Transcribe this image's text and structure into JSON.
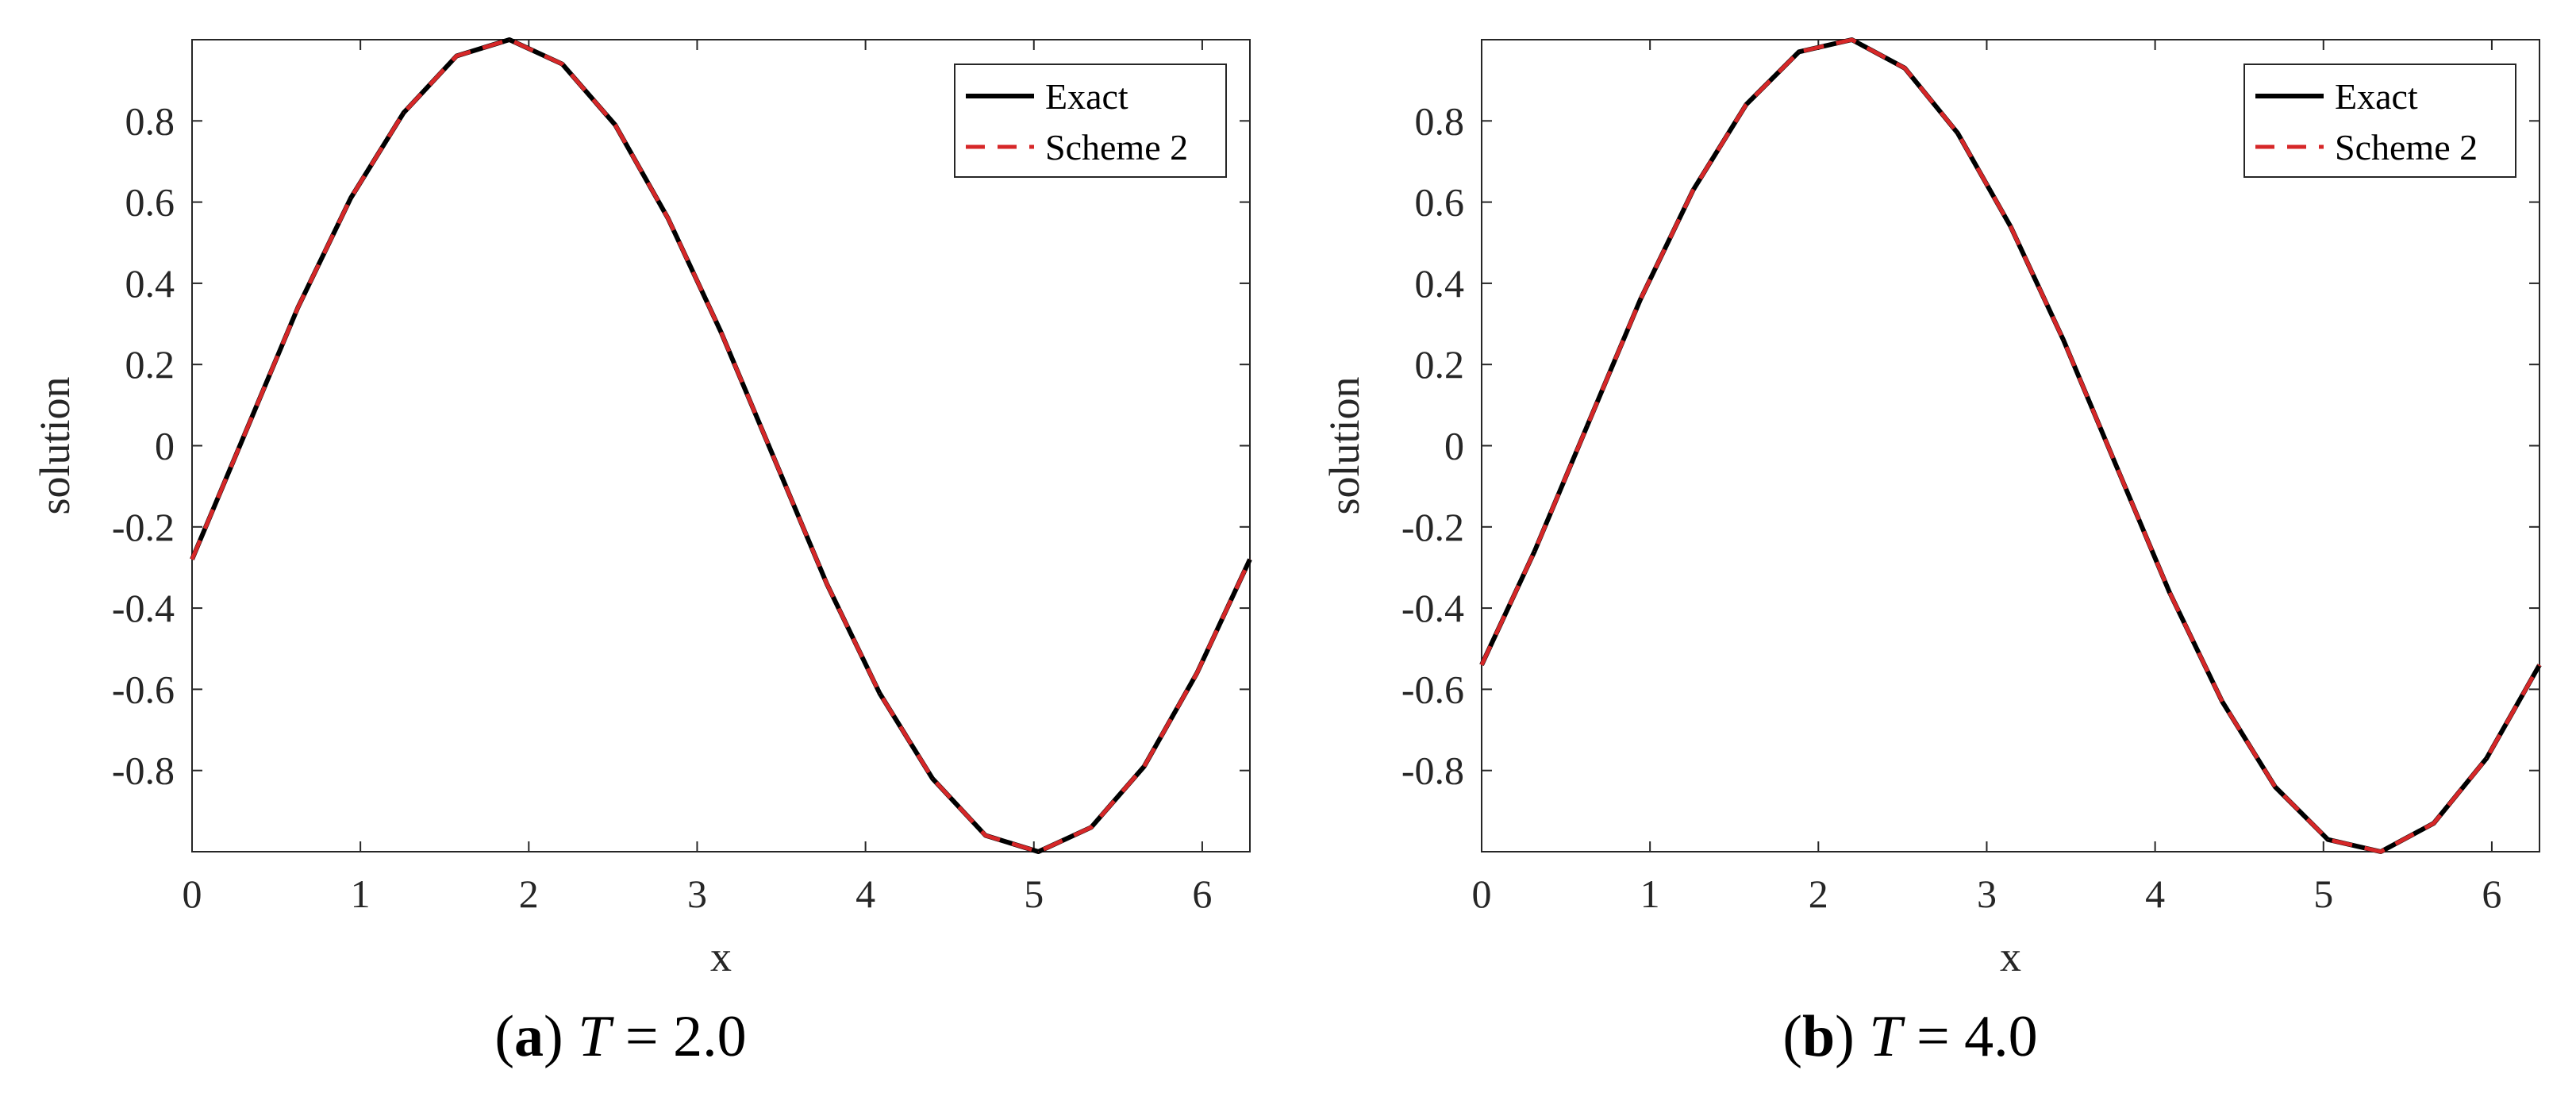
{
  "chart_data": [
    {
      "type": "line",
      "panel": "a",
      "title": "",
      "xlabel": "x",
      "ylabel": "solution",
      "xlim": [
        0,
        6.2832
      ],
      "ylim": [
        -1,
        1
      ],
      "xticks": [
        0,
        1,
        2,
        3,
        4,
        5,
        6
      ],
      "xtick_labels": [
        "0",
        "1",
        "2",
        "3",
        "4",
        "5",
        "6"
      ],
      "yticks": [
        -0.8,
        -0.6,
        -0.4,
        -0.2,
        0,
        0.2,
        0.4,
        0.6,
        0.8
      ],
      "ytick_labels": [
        "-0.8",
        "-0.6",
        "-0.4",
        "-0.2",
        "0",
        "0.2",
        "0.4",
        "0.6",
        "0.8"
      ],
      "grid": false,
      "legend_position": "top-right",
      "legend": [
        "Exact",
        "Scheme 2"
      ],
      "caption": {
        "letter": "a",
        "variable": "T",
        "equals": "=",
        "value": "2.0"
      },
      "x": [
        0,
        0.3142,
        0.6283,
        0.9425,
        1.2566,
        1.5708,
        1.885,
        2.1991,
        2.5133,
        2.8274,
        3.1416,
        3.4558,
        3.7699,
        4.0841,
        4.3982,
        4.7124,
        5.0265,
        5.3407,
        5.6549,
        5.969,
        6.2832
      ],
      "series": [
        {
          "name": "Exact",
          "color": "#000000",
          "style": "solid",
          "values": [
            -0.28,
            0.03,
            0.34,
            0.61,
            0.82,
            0.96,
            1.0,
            0.94,
            0.79,
            0.56,
            0.28,
            -0.03,
            -0.34,
            -0.61,
            -0.82,
            -0.96,
            -1.0,
            -0.94,
            -0.79,
            -0.56,
            -0.28
          ]
        },
        {
          "name": "Scheme 2",
          "color": "#d62728",
          "style": "dashed",
          "values": [
            -0.28,
            0.03,
            0.34,
            0.61,
            0.82,
            0.96,
            1.0,
            0.94,
            0.79,
            0.56,
            0.28,
            -0.03,
            -0.34,
            -0.61,
            -0.82,
            -0.96,
            -1.0,
            -0.94,
            -0.79,
            -0.56,
            -0.28
          ]
        }
      ]
    },
    {
      "type": "line",
      "panel": "b",
      "title": "",
      "xlabel": "x",
      "ylabel": "solution",
      "xlim": [
        0,
        6.2832
      ],
      "ylim": [
        -1,
        1
      ],
      "xticks": [
        0,
        1,
        2,
        3,
        4,
        5,
        6
      ],
      "xtick_labels": [
        "0",
        "1",
        "2",
        "3",
        "4",
        "5",
        "6"
      ],
      "yticks": [
        -0.8,
        -0.6,
        -0.4,
        -0.2,
        0,
        0.2,
        0.4,
        0.6,
        0.8
      ],
      "ytick_labels": [
        "-0.8",
        "-0.6",
        "-0.4",
        "-0.2",
        "0",
        "0.2",
        "0.4",
        "0.6",
        "0.8"
      ],
      "grid": false,
      "legend_position": "top-right",
      "legend": [
        "Exact",
        "Scheme 2"
      ],
      "caption": {
        "letter": "b",
        "variable": "T",
        "equals": "=",
        "value": "4.0"
      },
      "x": [
        0,
        0.3142,
        0.6283,
        0.9425,
        1.2566,
        1.5708,
        1.885,
        2.1991,
        2.5133,
        2.8274,
        3.1416,
        3.4558,
        3.7699,
        4.0841,
        4.3982,
        4.7124,
        5.0265,
        5.3407,
        5.6549,
        5.969,
        6.2832
      ],
      "series": [
        {
          "name": "Exact",
          "color": "#000000",
          "style": "solid",
          "values": [
            -0.54,
            -0.26,
            0.05,
            0.36,
            0.63,
            0.84,
            0.97,
            1.0,
            0.93,
            0.77,
            0.54,
            0.26,
            -0.05,
            -0.36,
            -0.63,
            -0.84,
            -0.97,
            -1.0,
            -0.93,
            -0.77,
            -0.54
          ]
        },
        {
          "name": "Scheme 2",
          "color": "#d62728",
          "style": "dashed",
          "values": [
            -0.54,
            -0.26,
            0.05,
            0.36,
            0.63,
            0.84,
            0.97,
            1.0,
            0.93,
            0.77,
            0.54,
            0.26,
            -0.05,
            -0.36,
            -0.63,
            -0.84,
            -0.97,
            -1.0,
            -0.93,
            -0.77,
            -0.54
          ]
        }
      ]
    }
  ]
}
